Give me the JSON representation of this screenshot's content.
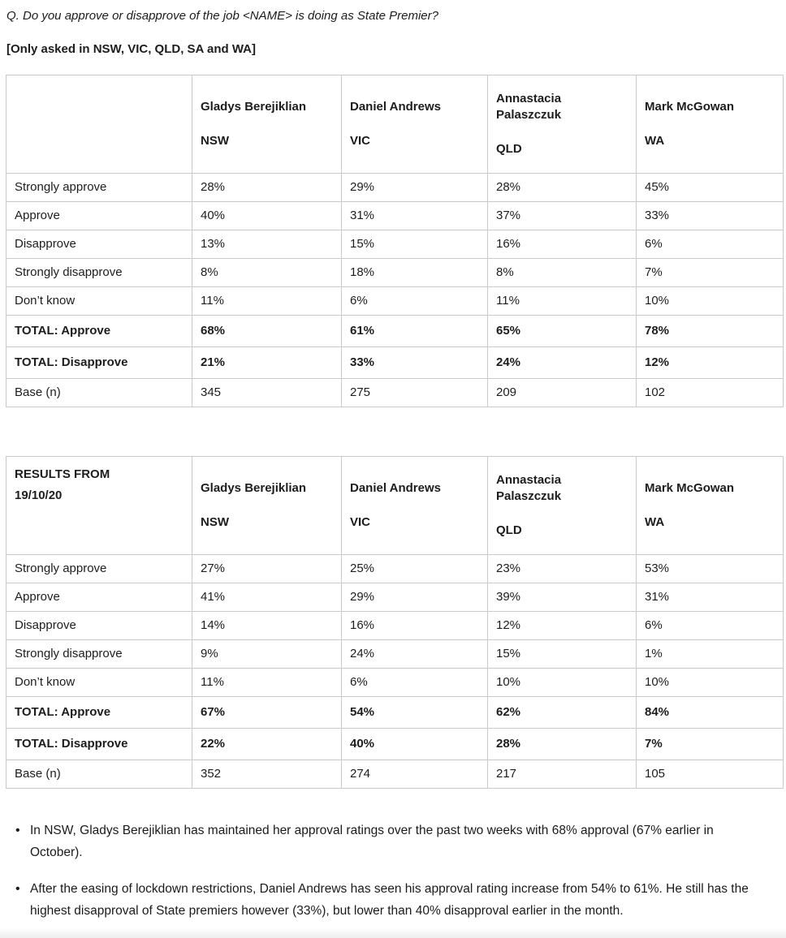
{
  "colors": {
    "background": "#ffffff",
    "text": "#1d1d1f",
    "table_border": "#c9c9c9"
  },
  "question": "Q. Do you approve or disapprove of the job <NAME> is doing as State Premier?",
  "note": "[Only asked in NSW, VIC, QLD, SA and WA]",
  "bullet_marker": "•",
  "tables": [
    {
      "name": "current-results",
      "corner_lines": [],
      "columns": [
        {
          "name": "Gladys Berejiklian",
          "region": "NSW"
        },
        {
          "name": "Daniel Andrews",
          "region": "VIC"
        },
        {
          "name": "Annastacia Palaszczuk",
          "region": "QLD"
        },
        {
          "name": "Mark McGowan",
          "region": "WA"
        }
      ],
      "rows": [
        {
          "label": "Strongly approve",
          "values": [
            "28%",
            "29%",
            "28%",
            "45%"
          ],
          "bold": false
        },
        {
          "label": "Approve",
          "values": [
            "40%",
            "31%",
            "37%",
            "33%"
          ],
          "bold": false
        },
        {
          "label": "Disapprove",
          "values": [
            "13%",
            "15%",
            "16%",
            "6%"
          ],
          "bold": false
        },
        {
          "label": "Strongly disapprove",
          "values": [
            "8%",
            "18%",
            "8%",
            "7%"
          ],
          "bold": false
        },
        {
          "label": "Don’t know",
          "values": [
            "11%",
            "6%",
            "11%",
            "10%"
          ],
          "bold": false
        },
        {
          "label": "TOTAL: Approve",
          "values": [
            "68%",
            "61%",
            "65%",
            "78%"
          ],
          "bold": true
        },
        {
          "label": "TOTAL: Disapprove",
          "values": [
            "21%",
            "33%",
            "24%",
            "12%"
          ],
          "bold": true
        },
        {
          "label": "Base (n)",
          "values": [
            "345",
            "275",
            "209",
            "102"
          ],
          "bold": false
        }
      ]
    },
    {
      "name": "previous-results",
      "corner_lines": [
        "RESULTS FROM",
        "19/10/20"
      ],
      "columns": [
        {
          "name": "Gladys Berejiklian",
          "region": "NSW"
        },
        {
          "name": "Daniel Andrews",
          "region": "VIC"
        },
        {
          "name": "Annastacia Palaszczuk",
          "region": "QLD"
        },
        {
          "name": "Mark McGowan",
          "region": "WA"
        }
      ],
      "rows": [
        {
          "label": "Strongly approve",
          "values": [
            "27%",
            "25%",
            "23%",
            "53%"
          ],
          "bold": false
        },
        {
          "label": "Approve",
          "values": [
            "41%",
            "29%",
            "39%",
            "31%"
          ],
          "bold": false
        },
        {
          "label": "Disapprove",
          "values": [
            "14%",
            "16%",
            "12%",
            "6%"
          ],
          "bold": false
        },
        {
          "label": "Strongly disapprove",
          "values": [
            "9%",
            "24%",
            "15%",
            "1%"
          ],
          "bold": false
        },
        {
          "label": "Don’t know",
          "values": [
            "11%",
            "6%",
            "10%",
            "10%"
          ],
          "bold": false
        },
        {
          "label": "TOTAL: Approve",
          "values": [
            "67%",
            "54%",
            "62%",
            "84%"
          ],
          "bold": true
        },
        {
          "label": "TOTAL: Disapprove",
          "values": [
            "22%",
            "40%",
            "28%",
            "7%"
          ],
          "bold": true
        },
        {
          "label": "Base (n)",
          "values": [
            "352",
            "274",
            "217",
            "105"
          ],
          "bold": false
        }
      ]
    }
  ],
  "bullets": [
    "In NSW, Gladys Berejiklian has maintained her approval ratings over the past two weeks with 68% approval (67% earlier in October).",
    "After the easing of lockdown restrictions, Daniel Andrews has seen his approval rating increase from 54% to 61%. He still has the highest disapproval of State premiers however (33%), but lower than 40% disapproval earlier in the month."
  ]
}
